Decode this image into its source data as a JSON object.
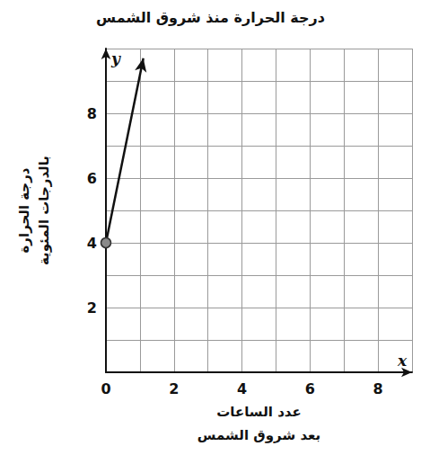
{
  "chart_data": {
    "type": "line",
    "title": "درجة الحرارة منذ شروق الشمس",
    "xlabel": "عدد الساعات\nبعد شروق الشمس",
    "ylabel": "درجة الحرارة\nبالدرجات المئوية",
    "axis_letters": {
      "x": "x",
      "y": "y"
    },
    "x": [
      0,
      1.1
    ],
    "values": [
      4,
      9.7
    ],
    "color": "#111111",
    "marker": "circle",
    "xlim": [
      0,
      9
    ],
    "xticks": [
      0,
      2,
      4,
      6,
      8
    ],
    "ylim": [
      0,
      10
    ],
    "yticks": [
      2,
      4,
      6,
      8
    ],
    "grid": true
  }
}
